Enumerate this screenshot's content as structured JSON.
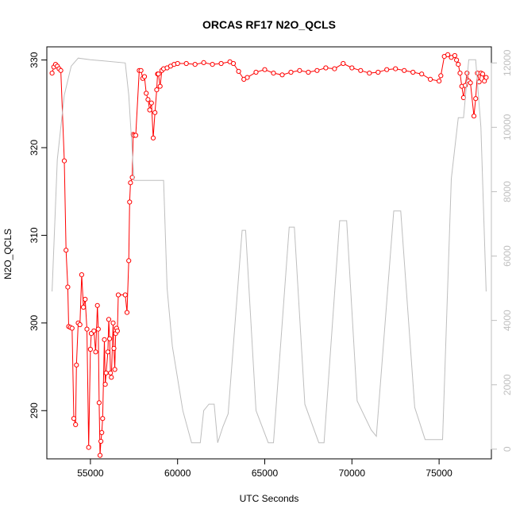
{
  "chart_data": {
    "type": "line",
    "title": "ORCAS RF17 N2O_QCLS",
    "xlabel": "UTC Seconds",
    "ylabel": "N2O_QCLS",
    "xlim": [
      52500,
      78000
    ],
    "ylim": [
      284.5,
      331.5
    ],
    "y2lim": [
      -300,
      12500
    ],
    "x_ticks": [
      55000,
      60000,
      65000,
      70000,
      75000
    ],
    "x_tick_labels": [
      "55000",
      "60000",
      "65000",
      "70000",
      "75000"
    ],
    "y_ticks": [
      290,
      300,
      310,
      320,
      330
    ],
    "y_tick_labels": [
      "290",
      "300",
      "310",
      "320",
      "330"
    ],
    "y2_ticks": [
      0,
      2000,
      4000,
      6000,
      8000,
      10000,
      12000
    ],
    "y2_tick_labels": [
      "0",
      "2000",
      "4000",
      "6000",
      "8000",
      "10000",
      "12000"
    ],
    "grid": false,
    "colors": {
      "n2o": "#ff0000",
      "altitude": "#bebebe"
    },
    "series": [
      {
        "axis": "left",
        "style": "line-with-open-circles",
        "color": "#ff0000",
        "points": [
          [
            52800,
            328.5
          ],
          [
            52900,
            329.2
          ],
          [
            53000,
            329.5
          ],
          [
            53100,
            329.3
          ],
          [
            53200,
            329.0
          ],
          [
            53300,
            328.8
          ],
          [
            53500,
            318.5
          ],
          [
            53600,
            308.3
          ],
          [
            53700,
            304.1
          ],
          [
            53750,
            299.6
          ],
          [
            53850,
            299.5
          ],
          [
            53950,
            299.4
          ],
          [
            54050,
            289.1
          ],
          [
            54150,
            288.4
          ],
          [
            54200,
            295.2
          ],
          [
            54300,
            300.0
          ],
          [
            54400,
            299.8
          ],
          [
            54500,
            305.5
          ],
          [
            54600,
            301.8
          ],
          [
            54700,
            302.7
          ],
          [
            54800,
            299.3
          ],
          [
            54900,
            285.8
          ],
          [
            55000,
            297.0
          ],
          [
            55050,
            298.8
          ],
          [
            55200,
            299.1
          ],
          [
            55300,
            296.7
          ],
          [
            55400,
            302.0
          ],
          [
            55450,
            299.3
          ],
          [
            55500,
            290.9
          ],
          [
            55550,
            284.9
          ],
          [
            55600,
            286.5
          ],
          [
            55650,
            287.5
          ],
          [
            55700,
            289.1
          ],
          [
            55800,
            298.1
          ],
          [
            55850,
            293.0
          ],
          [
            55900,
            294.3
          ],
          [
            56000,
            296.7
          ],
          [
            56050,
            300.4
          ],
          [
            56100,
            298.2
          ],
          [
            56150,
            294.3
          ],
          [
            56200,
            293.8
          ],
          [
            56300,
            300.0
          ],
          [
            56350,
            297.1
          ],
          [
            56400,
            294.7
          ],
          [
            56450,
            298.8
          ],
          [
            56500,
            299.4
          ],
          [
            56550,
            299.1
          ],
          [
            56600,
            303.2
          ],
          [
            57000,
            303.2
          ],
          [
            57100,
            301.2
          ],
          [
            57200,
            307.1
          ],
          [
            57250,
            313.8
          ],
          [
            57300,
            316.0
          ],
          [
            57400,
            316.6
          ],
          [
            57450,
            321.5
          ],
          [
            57500,
            321.4
          ],
          [
            57600,
            321.4
          ],
          [
            57800,
            328.8
          ],
          [
            57900,
            328.8
          ],
          [
            58000,
            327.9
          ],
          [
            58100,
            328.1
          ],
          [
            58200,
            326.2
          ],
          [
            58300,
            325.5
          ],
          [
            58400,
            324.3
          ],
          [
            58500,
            325.1
          ],
          [
            58600,
            321.1
          ],
          [
            58700,
            324.0
          ],
          [
            58800,
            326.6
          ],
          [
            58850,
            328.4
          ],
          [
            58900,
            328.4
          ],
          [
            59000,
            327.0
          ],
          [
            59100,
            328.8
          ],
          [
            59200,
            329.0
          ],
          [
            59400,
            329.1
          ],
          [
            59600,
            329.3
          ],
          [
            59800,
            329.5
          ],
          [
            60000,
            329.6
          ],
          [
            60500,
            329.6
          ],
          [
            61000,
            329.5
          ],
          [
            61500,
            329.7
          ],
          [
            62000,
            329.5
          ],
          [
            62500,
            329.6
          ],
          [
            63000,
            329.8
          ],
          [
            63200,
            329.6
          ],
          [
            63500,
            328.7
          ],
          [
            63800,
            327.8
          ],
          [
            64000,
            328.0
          ],
          [
            64500,
            328.6
          ],
          [
            65000,
            328.9
          ],
          [
            65500,
            328.5
          ],
          [
            66000,
            328.3
          ],
          [
            66500,
            328.6
          ],
          [
            67000,
            328.8
          ],
          [
            67500,
            328.6
          ],
          [
            68000,
            328.8
          ],
          [
            68500,
            329.1
          ],
          [
            69000,
            329.0
          ],
          [
            69500,
            329.6
          ],
          [
            70000,
            329.1
          ],
          [
            70500,
            328.8
          ],
          [
            71000,
            328.5
          ],
          [
            71500,
            328.6
          ],
          [
            72000,
            328.9
          ],
          [
            72500,
            329.0
          ],
          [
            73000,
            328.8
          ],
          [
            73500,
            328.6
          ],
          [
            74000,
            328.4
          ],
          [
            74500,
            327.8
          ],
          [
            75000,
            327.6
          ],
          [
            75100,
            328.2
          ],
          [
            75300,
            330.4
          ],
          [
            75500,
            330.6
          ],
          [
            75700,
            330.3
          ],
          [
            75900,
            330.5
          ],
          [
            76000,
            330.0
          ],
          [
            76100,
            329.5
          ],
          [
            76200,
            328.5
          ],
          [
            76300,
            327.0
          ],
          [
            76400,
            325.7
          ],
          [
            76500,
            327.1
          ],
          [
            76600,
            328.5
          ],
          [
            76700,
            327.6
          ],
          [
            76800,
            327.4
          ],
          [
            77000,
            323.6
          ],
          [
            77100,
            325.6
          ],
          [
            77200,
            328.5
          ],
          [
            77300,
            327.5
          ],
          [
            77400,
            328.5
          ],
          [
            77500,
            328.4
          ],
          [
            77600,
            327.6
          ],
          [
            77700,
            328.0
          ]
        ]
      },
      {
        "axis": "right",
        "style": "line",
        "color": "#bebebe",
        "points": [
          [
            52800,
            4900
          ],
          [
            53100,
            9000
          ],
          [
            53500,
            11000
          ],
          [
            53900,
            11900
          ],
          [
            54300,
            12150
          ],
          [
            55000,
            12100
          ],
          [
            57000,
            12000
          ],
          [
            57200,
            11000
          ],
          [
            57500,
            8350
          ],
          [
            58000,
            8350
          ],
          [
            58700,
            8350
          ],
          [
            59200,
            8350
          ],
          [
            59400,
            5000
          ],
          [
            59700,
            3200
          ],
          [
            60300,
            1200
          ],
          [
            60800,
            200
          ],
          [
            61300,
            200
          ],
          [
            61500,
            1200
          ],
          [
            61800,
            1400
          ],
          [
            62100,
            1400
          ],
          [
            62300,
            200
          ],
          [
            62600,
            700
          ],
          [
            62900,
            1100
          ],
          [
            63700,
            6800
          ],
          [
            63900,
            6800
          ],
          [
            64500,
            1200
          ],
          [
            65200,
            200
          ],
          [
            65500,
            200
          ],
          [
            66400,
            6900
          ],
          [
            66700,
            6900
          ],
          [
            67300,
            1400
          ],
          [
            68100,
            200
          ],
          [
            68400,
            200
          ],
          [
            69300,
            7100
          ],
          [
            69700,
            7100
          ],
          [
            70300,
            1500
          ],
          [
            71100,
            600
          ],
          [
            71400,
            400
          ],
          [
            72400,
            7400
          ],
          [
            72800,
            7400
          ],
          [
            73600,
            1300
          ],
          [
            74200,
            300
          ],
          [
            74800,
            300
          ],
          [
            75200,
            300
          ],
          [
            75700,
            8400
          ],
          [
            76100,
            10300
          ],
          [
            76400,
            10300
          ],
          [
            76700,
            12100
          ],
          [
            77100,
            12100
          ],
          [
            77400,
            10000
          ],
          [
            77700,
            4900
          ]
        ]
      }
    ]
  }
}
